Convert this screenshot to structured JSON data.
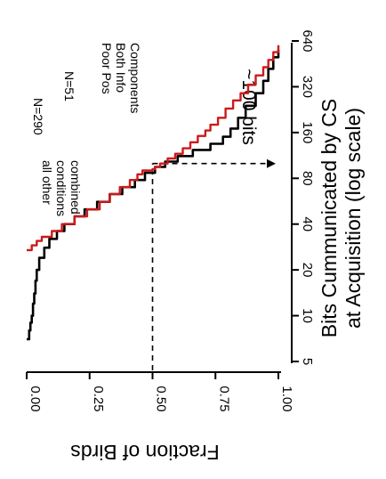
{
  "chart_data": {
    "type": "line",
    "orientation": "rotated 90 degrees clockwise",
    "xlabel": "Bits Cummunicated by CS",
    "xlabel_line2": "at Acquisition (log scale)",
    "ylabel": "Fraction of Birds",
    "x_scale": "log2",
    "xlim": [
      5,
      640
    ],
    "ylim": [
      0,
      1
    ],
    "x_ticks": [
      5,
      10,
      20,
      40,
      80,
      160,
      320,
      640
    ],
    "x_tick_labels": [
      "5",
      "10",
      "20",
      "40",
      "80",
      "160",
      "320",
      "640"
    ],
    "y_ticks": [
      0,
      0.25,
      0.5,
      0.75,
      1.0
    ],
    "y_tick_labels": [
      "0.00",
      "0.25",
      "0.50",
      "0.75",
      "1.00"
    ],
    "reference": {
      "x": 100,
      "y": 0.5,
      "label": "~100 bits"
    },
    "series": [
      {
        "color": "#000000",
        "x": [
          7,
          8,
          9,
          10,
          12,
          14,
          17,
          20,
          24,
          28,
          32,
          36,
          40,
          45,
          50,
          56,
          63,
          70,
          78,
          87,
          95,
          103,
          112,
          123,
          135,
          150,
          170,
          200,
          240,
          290,
          350,
          420,
          500,
          560
        ],
        "y": [
          0.0,
          0.01,
          0.015,
          0.02,
          0.025,
          0.03,
          0.035,
          0.04,
          0.05,
          0.07,
          0.09,
          0.12,
          0.15,
          0.19,
          0.23,
          0.28,
          0.33,
          0.38,
          0.43,
          0.47,
          0.51,
          0.55,
          0.6,
          0.66,
          0.73,
          0.78,
          0.81,
          0.84,
          0.87,
          0.91,
          0.94,
          0.96,
          0.98,
          1.0
        ]
      },
      {
        "color": "#cc1a1a",
        "x": [
          27,
          29,
          31,
          33,
          36,
          40,
          45,
          50,
          56,
          63,
          70,
          78,
          85,
          90,
          92,
          95,
          100,
          108,
          116,
          126,
          138,
          152,
          165,
          180,
          200,
          230,
          260,
          290,
          330,
          380,
          430,
          480,
          540,
          600
        ],
        "y": [
          0.0,
          0.02,
          0.04,
          0.06,
          0.1,
          0.14,
          0.19,
          0.24,
          0.29,
          0.33,
          0.37,
          0.41,
          0.44,
          0.46,
          0.5,
          0.51,
          0.53,
          0.56,
          0.59,
          0.62,
          0.65,
          0.68,
          0.71,
          0.73,
          0.76,
          0.79,
          0.82,
          0.85,
          0.88,
          0.91,
          0.94,
          0.96,
          0.98,
          1.0
        ]
      }
    ],
    "annotations": [
      {
        "text": "N=290",
        "lines": [
          "N=290"
        ]
      },
      {
        "text": "N=51",
        "lines": [
          "N=51"
        ]
      },
      {
        "text": "all other conditions combined",
        "lines": [
          "all other",
          "conditions",
          "combined"
        ]
      },
      {
        "text": "Poor Pos Both Info Components",
        "lines": [
          "Poor Pos",
          "Both Info",
          "Components"
        ]
      }
    ]
  }
}
